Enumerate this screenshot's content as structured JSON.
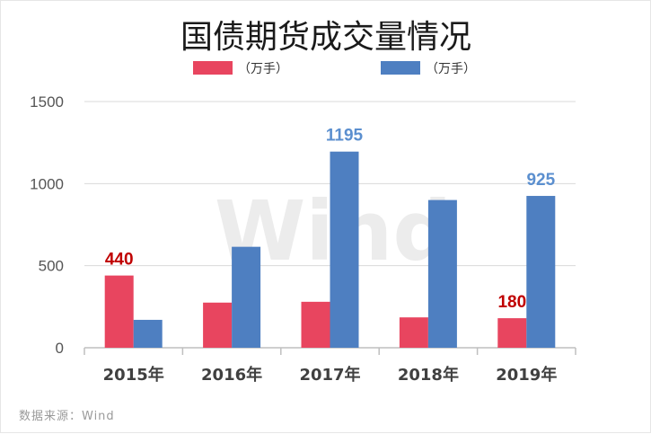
{
  "source_label": "数据来源：Wind",
  "watermark": "Wind",
  "chart_data": {
    "type": "bar",
    "title": "国债期货成交量情况",
    "categories": [
      "2015年",
      "2016年",
      "2017年",
      "2018年",
      "2019年"
    ],
    "series": [
      {
        "name": "（万手）",
        "color": "#e8455f",
        "values": [
          440,
          275,
          280,
          185,
          180
        ]
      },
      {
        "name": "（万手）",
        "color": "#4e7fc1",
        "values": [
          170,
          615,
          1195,
          900,
          925
        ]
      }
    ],
    "data_labels": [
      {
        "series": 0,
        "index": 0,
        "text": "440",
        "color": "#c00000"
      },
      {
        "series": 1,
        "index": 2,
        "text": "1195",
        "color": "#5b8fcf"
      },
      {
        "series": 1,
        "index": 4,
        "text": "925",
        "color": "#5b8fcf"
      },
      {
        "series": 0,
        "index": 4,
        "text": "180",
        "color": "#c00000"
      }
    ],
    "yticks": [
      0,
      500,
      1000,
      1500
    ],
    "ylim": [
      0,
      1500
    ],
    "xlabel": "",
    "ylabel": "",
    "grid": true,
    "legend_position": "top"
  }
}
